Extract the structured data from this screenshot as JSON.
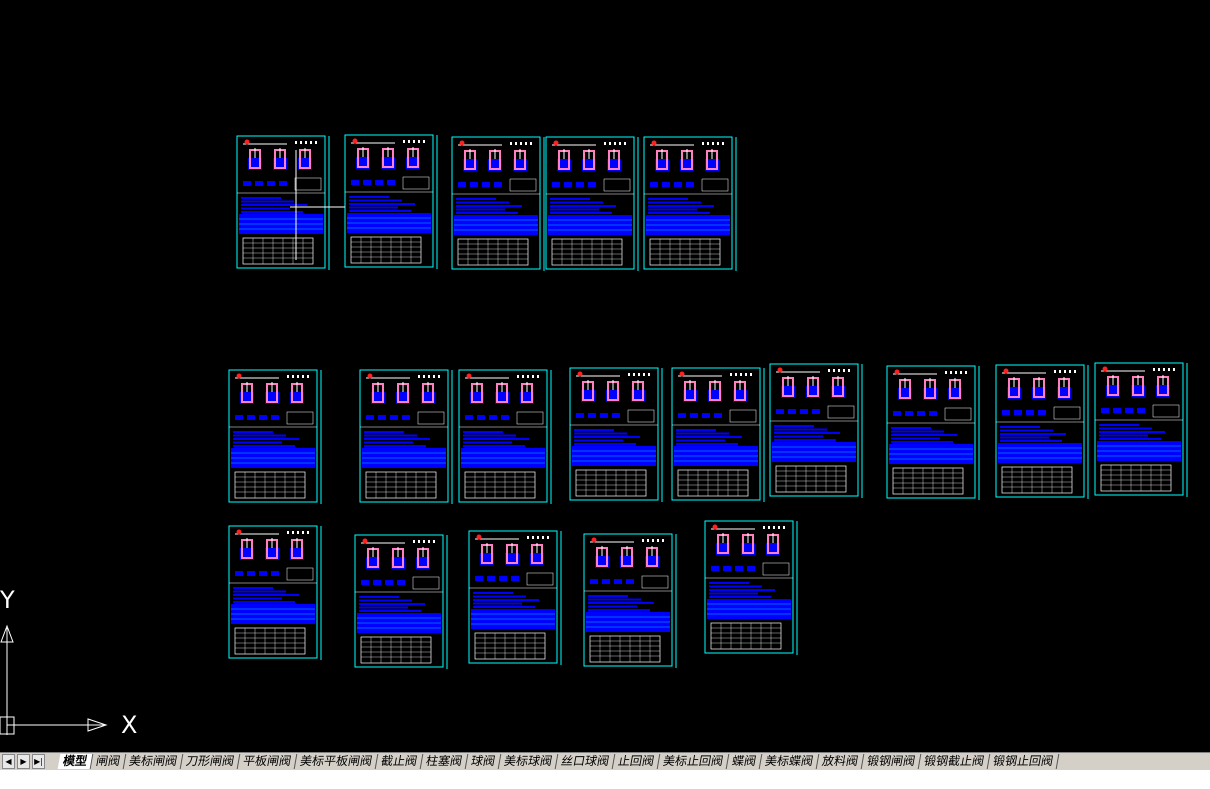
{
  "axes": {
    "x": "X",
    "y": "Y"
  },
  "tabs": [
    "模型",
    "闸阀",
    "美标闸阀",
    "刀形闸阀",
    "平板闸阀",
    "美标平板闸阀",
    "截止阀",
    "柱塞阀",
    "球阀",
    "美标球阀",
    "丝口球阀",
    "止回阀",
    "美标止回阀",
    "蝶阀",
    "美标蝶阀",
    "放料阀",
    "锻钢闸阀",
    "锻钢截止阀",
    "锻钢止回阀"
  ]
}
